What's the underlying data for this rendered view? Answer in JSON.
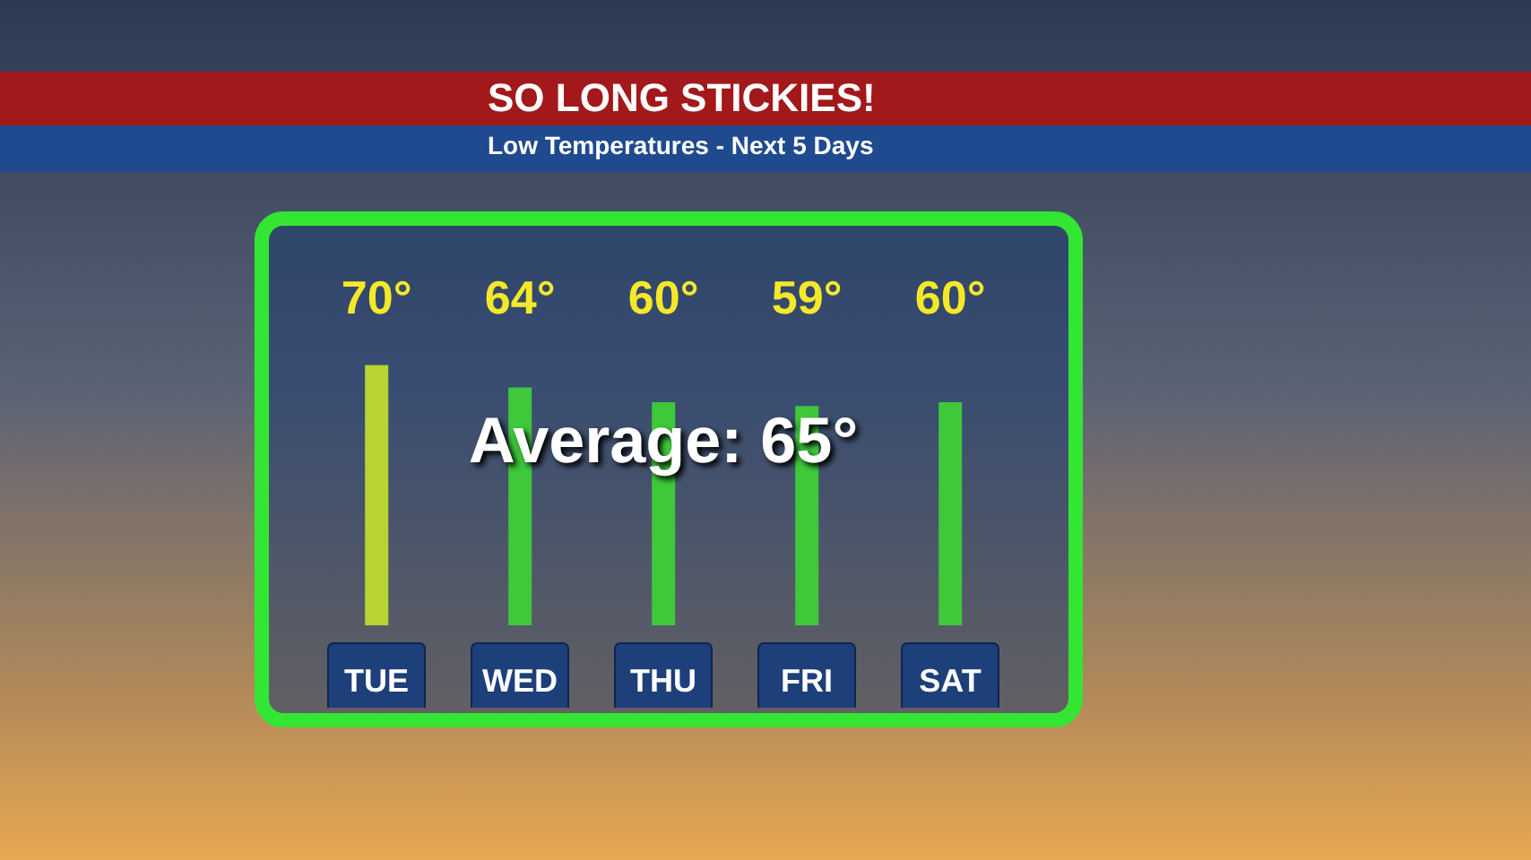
{
  "chart_data": {
    "type": "bar",
    "title": "SO LONG STICKIES!",
    "subtitle": "Low Temperatures - Next 5 Days",
    "categories": [
      "TUE",
      "WED",
      "THU",
      "FRI",
      "SAT"
    ],
    "values": [
      70,
      64,
      60,
      59,
      60
    ],
    "value_labels": [
      "70°",
      "64°",
      "60°",
      "59°",
      "60°"
    ],
    "colors": [
      "#b8d432",
      "#3ec83a",
      "#3ec83a",
      "#3ec83a",
      "#3ec83a"
    ],
    "annotations": [
      "Average: 65°"
    ],
    "grid": false,
    "legend": false
  }
}
